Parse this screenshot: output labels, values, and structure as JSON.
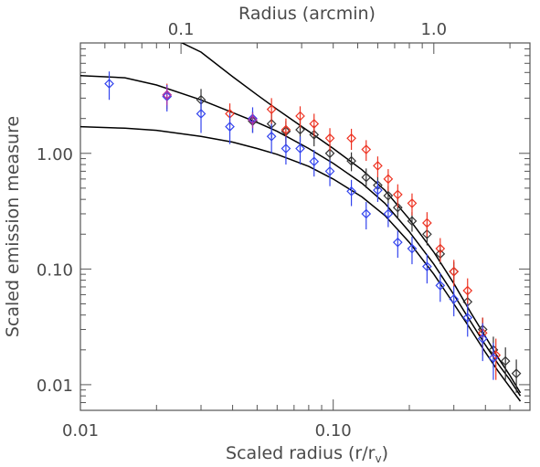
{
  "chart_data": {
    "type": "scatter",
    "title": "",
    "xlabel": "Scaled radius (r/r",
    "xlabel_sub": "v",
    "xlabel_close": ")",
    "ylabel": "Scaled emission measure",
    "top_axis_label": "Radius (arcmin)",
    "x_scale": "log",
    "y_scale": "log",
    "xlim": [
      0.01,
      0.6
    ],
    "ylim": [
      0.006,
      9.0
    ],
    "top_xlim_arcmin": [
      0.04,
      2.4
    ],
    "x_ticks": [
      {
        "value": 0.01,
        "label": "0.01"
      },
      {
        "value": 0.1,
        "label": "0.10"
      }
    ],
    "y_ticks": [
      {
        "value": 0.01,
        "label": "0.01"
      },
      {
        "value": 0.1,
        "label": "0.10"
      },
      {
        "value": 1.0,
        "label": "1.00"
      }
    ],
    "top_ticks": [
      {
        "value": 0.1,
        "label": "0.1"
      },
      {
        "value": 1.0,
        "label": "1.0"
      }
    ],
    "grid": false,
    "legend": "none",
    "colors": {
      "axis": "#555555",
      "text": "#4a4a4a",
      "model": "#000000",
      "black": "#333333",
      "red": "#ee3322",
      "blue": "#3344ee",
      "purple": "#aa33aa"
    },
    "series": [
      {
        "color": "black",
        "points": [
          [
            0.03,
            2.9,
            0.7
          ],
          [
            0.048,
            1.9,
            0.4
          ],
          [
            0.057,
            1.8,
            0.45
          ],
          [
            0.065,
            1.55,
            0.35
          ],
          [
            0.074,
            1.6,
            0.35
          ],
          [
            0.084,
            1.45,
            0.3
          ],
          [
            0.097,
            1.0,
            0.2
          ],
          [
            0.118,
            0.86,
            0.16
          ],
          [
            0.135,
            0.62,
            0.12
          ],
          [
            0.15,
            0.53,
            0.1
          ],
          [
            0.165,
            0.43,
            0.09
          ],
          [
            0.18,
            0.34,
            0.07
          ],
          [
            0.205,
            0.26,
            0.05
          ],
          [
            0.235,
            0.2,
            0.04
          ],
          [
            0.265,
            0.135,
            0.025
          ],
          [
            0.3,
            0.095,
            0.02
          ],
          [
            0.34,
            0.052,
            0.012
          ],
          [
            0.39,
            0.03,
            0.008
          ],
          [
            0.43,
            0.02,
            0.006
          ],
          [
            0.48,
            0.016,
            0.005
          ],
          [
            0.53,
            0.0125,
            0.004
          ]
        ]
      },
      {
        "color": "red",
        "points": [
          [
            0.022,
            3.2,
            0.8
          ],
          [
            0.039,
            2.2,
            0.5
          ],
          [
            0.057,
            2.4,
            0.6
          ],
          [
            0.065,
            1.6,
            0.4
          ],
          [
            0.074,
            2.1,
            0.45
          ],
          [
            0.084,
            1.8,
            0.4
          ],
          [
            0.097,
            1.35,
            0.3
          ],
          [
            0.118,
            1.35,
            0.28
          ],
          [
            0.135,
            1.08,
            0.22
          ],
          [
            0.15,
            0.78,
            0.16
          ],
          [
            0.165,
            0.6,
            0.13
          ],
          [
            0.18,
            0.44,
            0.1
          ],
          [
            0.205,
            0.37,
            0.08
          ],
          [
            0.235,
            0.25,
            0.06
          ],
          [
            0.265,
            0.15,
            0.035
          ],
          [
            0.3,
            0.095,
            0.025
          ],
          [
            0.34,
            0.065,
            0.018
          ],
          [
            0.39,
            0.028,
            0.01
          ],
          [
            0.44,
            0.018,
            0.007
          ]
        ]
      },
      {
        "color": "blue",
        "points": [
          [
            0.013,
            4.0,
            1.1
          ],
          [
            0.022,
            3.1,
            0.8
          ],
          [
            0.03,
            2.2,
            0.7
          ],
          [
            0.039,
            1.7,
            0.5
          ],
          [
            0.048,
            2.0,
            0.5
          ],
          [
            0.057,
            1.4,
            0.4
          ],
          [
            0.065,
            1.1,
            0.3
          ],
          [
            0.074,
            1.1,
            0.3
          ],
          [
            0.084,
            0.85,
            0.22
          ],
          [
            0.097,
            0.7,
            0.18
          ],
          [
            0.118,
            0.47,
            0.12
          ],
          [
            0.135,
            0.3,
            0.08
          ],
          [
            0.15,
            0.48,
            0.1
          ],
          [
            0.165,
            0.3,
            0.07
          ],
          [
            0.18,
            0.17,
            0.045
          ],
          [
            0.205,
            0.15,
            0.04
          ],
          [
            0.235,
            0.105,
            0.03
          ],
          [
            0.265,
            0.072,
            0.02
          ],
          [
            0.3,
            0.055,
            0.016
          ],
          [
            0.34,
            0.038,
            0.012
          ],
          [
            0.39,
            0.025,
            0.009
          ],
          [
            0.43,
            0.017,
            0.006
          ]
        ]
      },
      {
        "color": "purple",
        "points": [
          [
            0.022,
            3.2,
            0.6
          ],
          [
            0.048,
            1.95,
            0.3
          ]
        ]
      }
    ],
    "model_curves": [
      {
        "name": "upper",
        "points": [
          [
            0.01,
            15.0
          ],
          [
            0.02,
            11.5
          ],
          [
            0.03,
            7.5
          ],
          [
            0.04,
            4.6
          ],
          [
            0.05,
            3.2
          ],
          [
            0.06,
            2.4
          ],
          [
            0.08,
            1.55
          ],
          [
            0.1,
            1.1
          ],
          [
            0.13,
            0.72
          ],
          [
            0.16,
            0.48
          ],
          [
            0.2,
            0.27
          ],
          [
            0.25,
            0.14
          ],
          [
            0.3,
            0.075
          ],
          [
            0.35,
            0.042
          ],
          [
            0.4,
            0.026
          ],
          [
            0.45,
            0.017
          ],
          [
            0.5,
            0.012
          ],
          [
            0.55,
            0.0085
          ]
        ]
      },
      {
        "name": "middle",
        "points": [
          [
            0.01,
            4.7
          ],
          [
            0.015,
            4.5
          ],
          [
            0.02,
            3.9
          ],
          [
            0.03,
            2.9
          ],
          [
            0.04,
            2.25
          ],
          [
            0.05,
            1.85
          ],
          [
            0.06,
            1.55
          ],
          [
            0.08,
            1.1
          ],
          [
            0.1,
            0.82
          ],
          [
            0.13,
            0.55
          ],
          [
            0.16,
            0.37
          ],
          [
            0.2,
            0.21
          ],
          [
            0.25,
            0.11
          ],
          [
            0.3,
            0.06
          ],
          [
            0.35,
            0.035
          ],
          [
            0.4,
            0.022
          ],
          [
            0.45,
            0.015
          ],
          [
            0.5,
            0.011
          ],
          [
            0.55,
            0.008
          ]
        ]
      },
      {
        "name": "lower",
        "points": [
          [
            0.01,
            1.7
          ],
          [
            0.015,
            1.65
          ],
          [
            0.02,
            1.58
          ],
          [
            0.03,
            1.4
          ],
          [
            0.04,
            1.25
          ],
          [
            0.05,
            1.1
          ],
          [
            0.06,
            0.98
          ],
          [
            0.08,
            0.77
          ],
          [
            0.1,
            0.6
          ],
          [
            0.13,
            0.42
          ],
          [
            0.16,
            0.29
          ],
          [
            0.2,
            0.17
          ],
          [
            0.25,
            0.09
          ],
          [
            0.3,
            0.05
          ],
          [
            0.35,
            0.03
          ],
          [
            0.4,
            0.019
          ],
          [
            0.45,
            0.013
          ],
          [
            0.5,
            0.0095
          ],
          [
            0.55,
            0.0072
          ]
        ]
      }
    ]
  }
}
